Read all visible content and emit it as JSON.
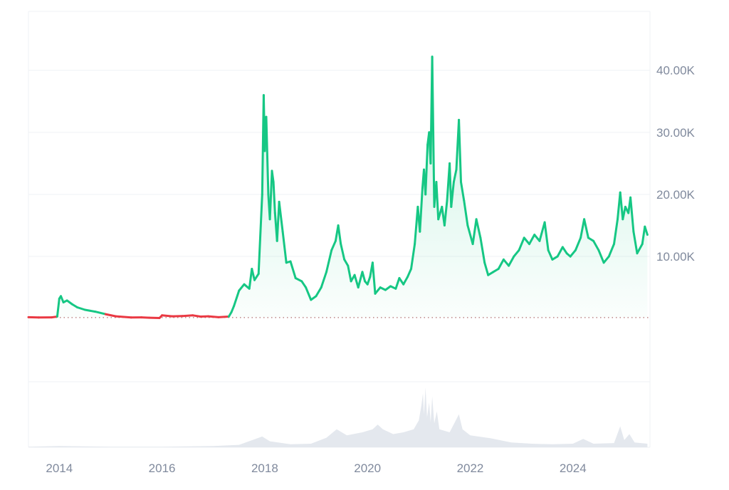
{
  "colors": {
    "up": "#16c784",
    "down": "#ea3943",
    "grid": "#eff2f5",
    "axis_text": "#808a9d",
    "volume": "#e4e8ee",
    "baseline_dots": "#b07070"
  },
  "chart_data": {
    "type": "line",
    "title": "",
    "xlabel": "",
    "ylabel": "",
    "x_range": [
      2013.4,
      2025.5
    ],
    "y_range": [
      -10200,
      49500
    ],
    "baseline_value": 150,
    "grid": true,
    "y_axis_position": "right",
    "x_ticks": [
      {
        "value": 2014,
        "label": "2014"
      },
      {
        "value": 2016,
        "label": "2016"
      },
      {
        "value": 2018,
        "label": "2018"
      },
      {
        "value": 2020,
        "label": "2020"
      },
      {
        "value": 2022,
        "label": "2022"
      },
      {
        "value": 2024,
        "label": "2024"
      }
    ],
    "y_ticks": [
      {
        "value": 10000,
        "label": "10.00K"
      },
      {
        "value": 20000,
        "label": "20.00K"
      },
      {
        "value": 30000,
        "label": "30.00K"
      },
      {
        "value": 40000,
        "label": "40.00K"
      }
    ],
    "series": [
      {
        "points": [
          [
            2013.4,
            200
          ],
          [
            2013.6,
            160
          ],
          [
            2013.85,
            180
          ],
          [
            2013.96,
            300
          ],
          [
            2014.0,
            3200
          ],
          [
            2014.03,
            3600
          ],
          [
            2014.08,
            2600
          ],
          [
            2014.15,
            2900
          ],
          [
            2014.25,
            2300
          ],
          [
            2014.35,
            1800
          ],
          [
            2014.5,
            1400
          ],
          [
            2014.7,
            1100
          ],
          [
            2014.9,
            700
          ],
          [
            2015.1,
            350
          ],
          [
            2015.4,
            150
          ],
          [
            2015.6,
            180
          ],
          [
            2015.75,
            120
          ],
          [
            2015.95,
            80
          ],
          [
            2016.0,
            500
          ],
          [
            2016.2,
            350
          ],
          [
            2016.4,
            400
          ],
          [
            2016.6,
            500
          ],
          [
            2016.75,
            300
          ],
          [
            2016.9,
            350
          ],
          [
            2017.1,
            200
          ],
          [
            2017.3,
            300
          ],
          [
            2017.35,
            1000
          ],
          [
            2017.4,
            2000
          ],
          [
            2017.5,
            4500
          ],
          [
            2017.6,
            5500
          ],
          [
            2017.7,
            4800
          ],
          [
            2017.75,
            8000
          ],
          [
            2017.8,
            6200
          ],
          [
            2017.88,
            7200
          ],
          [
            2017.95,
            20000
          ],
          [
            2017.98,
            36000
          ],
          [
            2018.0,
            27000
          ],
          [
            2018.03,
            32500
          ],
          [
            2018.07,
            20000
          ],
          [
            2018.1,
            16000
          ],
          [
            2018.14,
            23800
          ],
          [
            2018.17,
            22000
          ],
          [
            2018.2,
            17000
          ],
          [
            2018.24,
            12500
          ],
          [
            2018.28,
            18800
          ],
          [
            2018.35,
            14000
          ],
          [
            2018.42,
            9000
          ],
          [
            2018.5,
            9200
          ],
          [
            2018.6,
            6500
          ],
          [
            2018.72,
            6000
          ],
          [
            2018.8,
            5000
          ],
          [
            2018.9,
            3000
          ],
          [
            2019.0,
            3600
          ],
          [
            2019.1,
            5000
          ],
          [
            2019.2,
            7500
          ],
          [
            2019.3,
            11000
          ],
          [
            2019.38,
            12500
          ],
          [
            2019.43,
            15000
          ],
          [
            2019.48,
            12000
          ],
          [
            2019.55,
            9500
          ],
          [
            2019.62,
            8500
          ],
          [
            2019.68,
            6000
          ],
          [
            2019.75,
            7000
          ],
          [
            2019.82,
            5000
          ],
          [
            2019.9,
            7500
          ],
          [
            2019.95,
            6000
          ],
          [
            2020.0,
            5500
          ],
          [
            2020.05,
            6700
          ],
          [
            2020.1,
            9000
          ],
          [
            2020.15,
            4000
          ],
          [
            2020.25,
            5000
          ],
          [
            2020.35,
            4600
          ],
          [
            2020.45,
            5200
          ],
          [
            2020.55,
            4800
          ],
          [
            2020.62,
            6500
          ],
          [
            2020.7,
            5500
          ],
          [
            2020.78,
            6700
          ],
          [
            2020.85,
            8000
          ],
          [
            2020.92,
            12000
          ],
          [
            2020.98,
            18000
          ],
          [
            2021.02,
            14000
          ],
          [
            2021.07,
            21000
          ],
          [
            2021.1,
            24000
          ],
          [
            2021.13,
            20000
          ],
          [
            2021.17,
            28000
          ],
          [
            2021.2,
            30000
          ],
          [
            2021.23,
            25000
          ],
          [
            2021.26,
            42200
          ],
          [
            2021.3,
            18000
          ],
          [
            2021.34,
            22000
          ],
          [
            2021.38,
            16000
          ],
          [
            2021.45,
            18000
          ],
          [
            2021.5,
            15000
          ],
          [
            2021.55,
            19000
          ],
          [
            2021.6,
            25000
          ],
          [
            2021.63,
            18000
          ],
          [
            2021.68,
            22000
          ],
          [
            2021.73,
            24000
          ],
          [
            2021.78,
            32000
          ],
          [
            2021.82,
            22000
          ],
          [
            2021.88,
            19000
          ],
          [
            2021.95,
            15000
          ],
          [
            2022.05,
            12000
          ],
          [
            2022.12,
            16000
          ],
          [
            2022.2,
            13000
          ],
          [
            2022.28,
            9000
          ],
          [
            2022.35,
            7000
          ],
          [
            2022.45,
            7500
          ],
          [
            2022.55,
            8000
          ],
          [
            2022.65,
            9500
          ],
          [
            2022.75,
            8500
          ],
          [
            2022.85,
            10000
          ],
          [
            2022.95,
            11000
          ],
          [
            2023.05,
            13000
          ],
          [
            2023.15,
            12000
          ],
          [
            2023.25,
            13500
          ],
          [
            2023.35,
            12500
          ],
          [
            2023.45,
            15500
          ],
          [
            2023.52,
            11000
          ],
          [
            2023.6,
            9500
          ],
          [
            2023.7,
            10000
          ],
          [
            2023.8,
            11500
          ],
          [
            2023.88,
            10500
          ],
          [
            2023.95,
            10000
          ],
          [
            2024.05,
            11000
          ],
          [
            2024.15,
            13000
          ],
          [
            2024.22,
            16000
          ],
          [
            2024.3,
            13000
          ],
          [
            2024.4,
            12500
          ],
          [
            2024.5,
            11000
          ],
          [
            2024.6,
            9000
          ],
          [
            2024.7,
            10000
          ],
          [
            2024.8,
            12000
          ],
          [
            2024.87,
            16000
          ],
          [
            2024.92,
            20300
          ],
          [
            2024.97,
            16000
          ],
          [
            2025.02,
            18000
          ],
          [
            2025.08,
            17000
          ],
          [
            2025.12,
            19500
          ],
          [
            2025.18,
            14000
          ],
          [
            2025.25,
            10500
          ],
          [
            2025.35,
            12000
          ],
          [
            2025.4,
            14800
          ],
          [
            2025.45,
            13500
          ]
        ]
      }
    ],
    "volume_points": [
      [
        2013.4,
        0.01
      ],
      [
        2014.0,
        0.02
      ],
      [
        2015.0,
        0.01
      ],
      [
        2016.0,
        0.01
      ],
      [
        2017.0,
        0.02
      ],
      [
        2017.5,
        0.04
      ],
      [
        2017.95,
        0.18
      ],
      [
        2018.1,
        0.1
      ],
      [
        2018.5,
        0.05
      ],
      [
        2018.9,
        0.06
      ],
      [
        2019.2,
        0.16
      ],
      [
        2019.4,
        0.3
      ],
      [
        2019.6,
        0.2
      ],
      [
        2019.9,
        0.25
      ],
      [
        2020.1,
        0.3
      ],
      [
        2020.2,
        0.38
      ],
      [
        2020.3,
        0.3
      ],
      [
        2020.5,
        0.22
      ],
      [
        2020.7,
        0.25
      ],
      [
        2020.9,
        0.3
      ],
      [
        2021.0,
        0.45
      ],
      [
        2021.05,
        0.7
      ],
      [
        2021.08,
        0.9
      ],
      [
        2021.1,
        0.55
      ],
      [
        2021.13,
        1.0
      ],
      [
        2021.16,
        0.5
      ],
      [
        2021.2,
        0.75
      ],
      [
        2021.23,
        0.42
      ],
      [
        2021.26,
        0.85
      ],
      [
        2021.3,
        0.4
      ],
      [
        2021.35,
        0.6
      ],
      [
        2021.4,
        0.3
      ],
      [
        2021.6,
        0.25
      ],
      [
        2021.78,
        0.55
      ],
      [
        2021.85,
        0.3
      ],
      [
        2022.0,
        0.2
      ],
      [
        2022.4,
        0.15
      ],
      [
        2022.8,
        0.08
      ],
      [
        2023.2,
        0.06
      ],
      [
        2023.6,
        0.05
      ],
      [
        2024.0,
        0.06
      ],
      [
        2024.2,
        0.14
      ],
      [
        2024.4,
        0.06
      ],
      [
        2024.8,
        0.07
      ],
      [
        2024.92,
        0.35
      ],
      [
        2025.0,
        0.12
      ],
      [
        2025.1,
        0.22
      ],
      [
        2025.2,
        0.08
      ],
      [
        2025.45,
        0.06
      ]
    ]
  }
}
